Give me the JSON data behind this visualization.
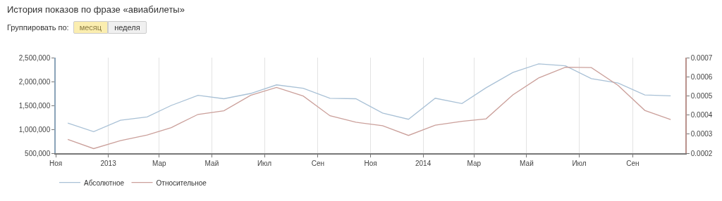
{
  "chart_data": {
    "type": "line",
    "title": "История показов по фразе «авиабилеты»",
    "annotations": [
      "Группировать по:",
      "месяц",
      "неделя"
    ],
    "x": [
      "2012-11-15",
      "2012-12-15",
      "2013-01-15",
      "2013-02-15",
      "2013-03-15",
      "2013-04-15",
      "2013-05-15",
      "2013-06-15",
      "2013-07-15",
      "2013-08-15",
      "2013-09-15",
      "2013-10-15",
      "2013-11-15",
      "2013-12-15",
      "2014-01-15",
      "2014-02-15",
      "2014-03-15",
      "2014-04-15",
      "2014-05-15",
      "2014-06-15",
      "2014-07-15",
      "2014-08-15",
      "2014-09-15",
      "2014-10-15"
    ],
    "series": [
      {
        "name": "Абсолютное",
        "color": "#a9c1d6",
        "values": [
          1130000,
          950000,
          1190000,
          1260000,
          1500000,
          1710000,
          1640000,
          1750000,
          1930000,
          1860000,
          1650000,
          1640000,
          1340000,
          1210000,
          1650000,
          1540000,
          1870000,
          2190000,
          2370000,
          2330000,
          2060000,
          1970000,
          1720000,
          1700000
        ]
      },
      {
        "name": "Относительное",
        "color": "#cba09b",
        "axis": "y2",
        "values": [
          0.000272,
          0.000224,
          0.000266,
          0.000295,
          0.000334,
          0.000403,
          0.000422,
          0.000503,
          0.000544,
          0.000499,
          0.000396,
          0.000362,
          0.000344,
          0.000293,
          0.000347,
          0.000367,
          0.00038,
          0.000505,
          0.000594,
          0.00065,
          0.000648,
          0.000555,
          0.000424,
          0.000376
        ]
      }
    ],
    "xlim": [
      "2012-11-01",
      "2014-11-01"
    ],
    "xticks": [
      {
        "value": "2012-11-01",
        "label": "Ноя"
      },
      {
        "value": "2013-01-01",
        "label": "2013"
      },
      {
        "value": "2013-03-01",
        "label": "Мар"
      },
      {
        "value": "2013-05-01",
        "label": "Май"
      },
      {
        "value": "2013-07-01",
        "label": "Июл"
      },
      {
        "value": "2013-09-01",
        "label": "Сен"
      },
      {
        "value": "2013-11-01",
        "label": "Ноя"
      },
      {
        "value": "2014-01-01",
        "label": "2014"
      },
      {
        "value": "2014-03-01",
        "label": "Мар"
      },
      {
        "value": "2014-05-01",
        "label": "Май"
      },
      {
        "value": "2014-07-01",
        "label": "Июл"
      },
      {
        "value": "2014-09-01",
        "label": "Сен"
      }
    ],
    "ylim": [
      500000,
      2500000
    ],
    "yticks": [
      {
        "value": 500000,
        "label": "500,000"
      },
      {
        "value": 1000000,
        "label": "1,000,000"
      },
      {
        "value": 1500000,
        "label": "1,500,000"
      },
      {
        "value": 2000000,
        "label": "2,000,000"
      },
      {
        "value": 2500000,
        "label": "2,500,000"
      }
    ],
    "y2lim": [
      0.0002,
      0.0007
    ],
    "y2ticks": [
      0.0002,
      0.0003,
      0.0004,
      0.0005,
      0.0006,
      0.0007
    ],
    "grid": "x",
    "legend": "bottom left",
    "marker": "none",
    "line_style": "solid"
  }
}
